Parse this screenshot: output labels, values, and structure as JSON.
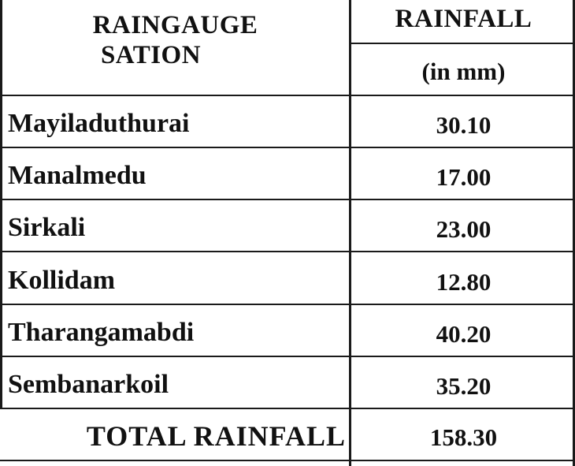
{
  "table": {
    "header": {
      "station_line1": "RAINGAUGE",
      "station_line2": "SATION",
      "rainfall": "RAINFALL",
      "unit": "(in mm)"
    },
    "rows": [
      {
        "station": "Mayiladuthurai",
        "rainfall": "30.10"
      },
      {
        "station": "Manalmedu",
        "rainfall": "17.00"
      },
      {
        "station": "Sirkali",
        "rainfall": "23.00"
      },
      {
        "station": "Kollidam",
        "rainfall": "12.80"
      },
      {
        "station": "Tharangamabdi",
        "rainfall": "40.20"
      },
      {
        "station": "Sembanarkoil",
        "rainfall": "35.20"
      }
    ],
    "total": {
      "label": "TOTAL RAINFALL",
      "value": "158.30"
    }
  }
}
